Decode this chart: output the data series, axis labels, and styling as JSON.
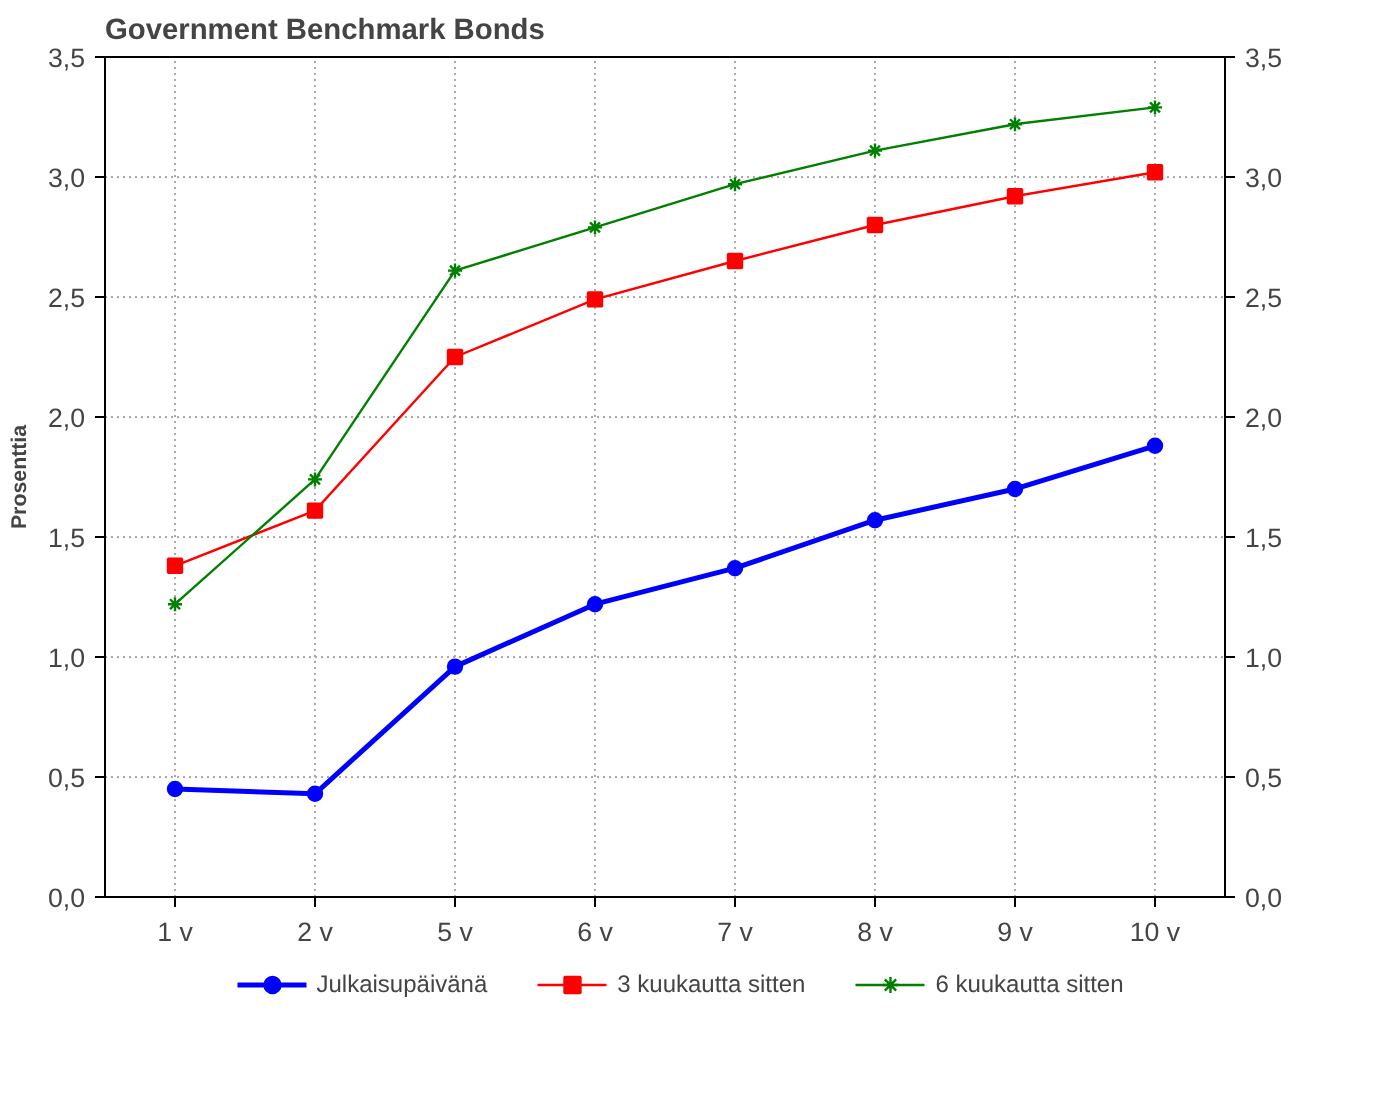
{
  "chart_data": {
    "type": "line",
    "title": "Government Benchmark Bonds",
    "ylabel": "Prosenttia",
    "categories": [
      "1 v",
      "2 v",
      "5 v",
      "6 v",
      "7 v",
      "8 v",
      "9 v",
      "10 v"
    ],
    "series": [
      {
        "name": "Julkaisupäivänä",
        "color": "#0000ff",
        "marker": "circle",
        "values": [
          0.45,
          0.43,
          0.96,
          1.22,
          1.37,
          1.57,
          1.7,
          1.88
        ]
      },
      {
        "name": "3 kuukautta sitten",
        "color": "#ff0000",
        "marker": "square",
        "values": [
          1.38,
          1.61,
          2.25,
          2.49,
          2.65,
          2.8,
          2.92,
          3.02
        ]
      },
      {
        "name": "6 kuukautta sitten",
        "color": "#008000",
        "marker": "cross",
        "values": [
          1.22,
          1.74,
          2.61,
          2.79,
          2.97,
          3.11,
          3.22,
          3.29
        ]
      }
    ],
    "ylim": [
      0,
      3.5
    ],
    "yticks": [
      {
        "value": 0,
        "label": "0,0"
      },
      {
        "value": 0.5,
        "label": "0,5"
      },
      {
        "value": 1,
        "label": "1,0"
      },
      {
        "value": 1.5,
        "label": "1,5"
      },
      {
        "value": 2,
        "label": "2,0"
      },
      {
        "value": 2.5,
        "label": "2,5"
      },
      {
        "value": 3,
        "label": "3,0"
      },
      {
        "value": 3.5,
        "label": "3,5"
      }
    ],
    "y2lim": [
      0,
      3.5
    ],
    "y2ticks": [
      {
        "value": 0,
        "label": "0,0"
      },
      {
        "value": 0.5,
        "label": "0,5"
      },
      {
        "value": 1,
        "label": "1,0"
      },
      {
        "value": 1.5,
        "label": "1,5"
      },
      {
        "value": 2,
        "label": "2,0"
      },
      {
        "value": 2.5,
        "label": "2,5"
      },
      {
        "value": 3,
        "label": "3,0"
      },
      {
        "value": 3.5,
        "label": "3,5"
      }
    ],
    "grid": true,
    "legend": "bottom",
    "line_style": "solid"
  }
}
